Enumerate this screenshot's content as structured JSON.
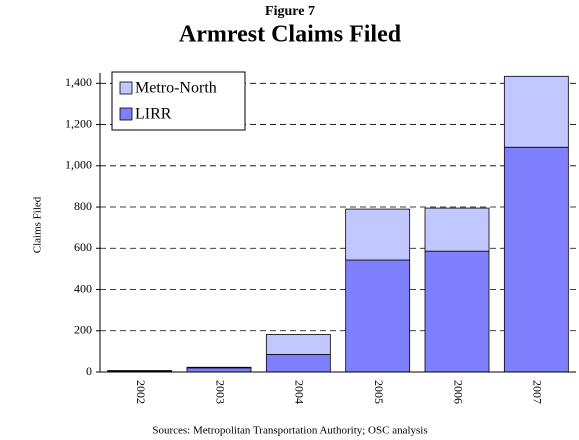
{
  "chart_data": {
    "type": "stacked_bar",
    "supertitle": "Figure 7",
    "title": "Armrest Claims Filed",
    "y_label": "Claims Filed",
    "source": "Sources: Metropolitan Transportation Authority; OSC analysis",
    "categories": [
      "2002",
      "2003",
      "2004",
      "2005",
      "2006",
      "2007"
    ],
    "series": [
      {
        "name": "LIRR",
        "color": "#8080ff",
        "values": [
          5,
          20,
          85,
          543,
          586,
          1090
        ]
      },
      {
        "name": "Metro-North",
        "color": "#c0c8ff",
        "values": [
          2,
          3,
          97,
          247,
          209,
          344
        ]
      }
    ],
    "ylim": [
      0,
      1450
    ],
    "yticks": [
      0,
      200,
      400,
      600,
      800,
      {
        "value": 1000,
        "label": "1,000"
      },
      {
        "value": 1200,
        "label": "1,200"
      },
      {
        "value": 1400,
        "label": "1,400"
      }
    ],
    "grid": true,
    "legend": "upper left"
  }
}
